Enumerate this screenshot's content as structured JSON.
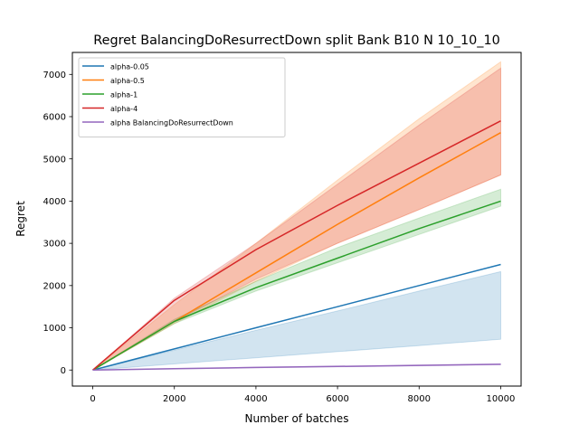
{
  "chart_data": {
    "type": "line",
    "title": "Regret BalancingDoResurrectDown split Bank B10 N 10_10_10",
    "xlabel": "Number of batches",
    "ylabel": "Regret",
    "xlim": [
      -500,
      10500
    ],
    "ylim": [
      -380,
      7520
    ],
    "xticks": [
      0,
      2000,
      4000,
      6000,
      8000,
      10000
    ],
    "yticks": [
      0,
      1000,
      2000,
      3000,
      4000,
      5000,
      6000,
      7000
    ],
    "xtick_labels": [
      "0",
      "2000",
      "4000",
      "6000",
      "8000",
      "10000"
    ],
    "ytick_labels": [
      "0",
      "1000",
      "2000",
      "3000",
      "4000",
      "5000",
      "6000",
      "7000"
    ],
    "grid": false,
    "legend_position": "top-left",
    "series": [
      {
        "name": "alpha-0.05",
        "color": "#1f77b4",
        "x": [
          0,
          2000,
          4000,
          6000,
          8000,
          10000
        ],
        "values": [
          0,
          500,
          1000,
          1500,
          2000,
          2500
        ],
        "lower": [
          0,
          145,
          290,
          435,
          580,
          730
        ],
        "upper": [
          0,
          470,
          940,
          1400,
          1870,
          2330
        ]
      },
      {
        "name": "alpha-0.5",
        "color": "#ff7f0e",
        "x": [
          0,
          2000,
          4000,
          6000,
          8000,
          10000
        ],
        "values": [
          0,
          1150,
          2300,
          3450,
          4550,
          5620
        ],
        "lower": [
          0,
          1100,
          2100,
          3000,
          3800,
          4620
        ],
        "upper": [
          0,
          1550,
          3000,
          4500,
          5950,
          7300
        ]
      },
      {
        "name": "alpha-1",
        "color": "#2ca02c",
        "x": [
          0,
          2000,
          4000,
          6000,
          8000,
          10000
        ],
        "values": [
          0,
          1150,
          1950,
          2650,
          3350,
          4000
        ],
        "lower": [
          0,
          1100,
          1870,
          2540,
          3210,
          3880
        ],
        "upper": [
          0,
          1200,
          2100,
          2900,
          3600,
          4280
        ]
      },
      {
        "name": "alpha-4",
        "color": "#d62728",
        "x": [
          0,
          2000,
          4000,
          6000,
          8000,
          10000
        ],
        "values": [
          0,
          1650,
          2850,
          3900,
          4900,
          5900
        ],
        "lower": [
          0,
          1150,
          2150,
          3000,
          3800,
          4620
        ],
        "upper": [
          0,
          1700,
          3000,
          4400,
          5800,
          7150
        ]
      },
      {
        "name": "alpha BalancingDoResurrectDown",
        "color": "#9467bd",
        "x": [
          0,
          2000,
          4000,
          6000,
          8000,
          10000
        ],
        "values": [
          0,
          30,
          60,
          85,
          110,
          135
        ],
        "lower": [
          0,
          25,
          50,
          75,
          100,
          125
        ],
        "upper": [
          0,
          35,
          68,
          95,
          120,
          145
        ]
      }
    ]
  }
}
